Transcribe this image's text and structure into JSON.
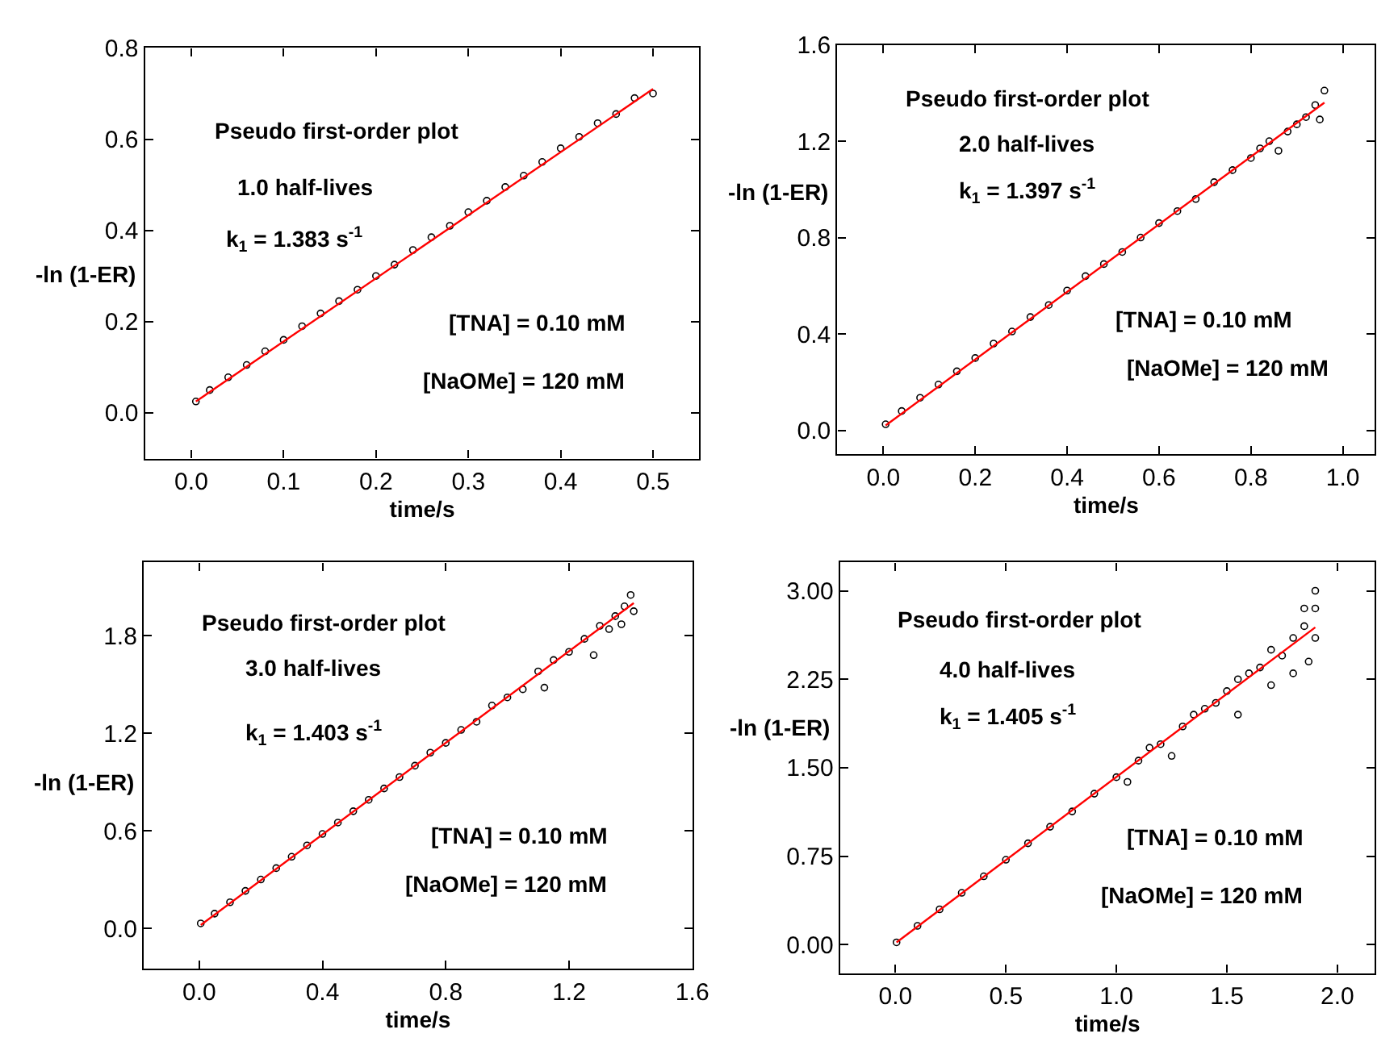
{
  "chart_data": [
    {
      "type": "scatter",
      "xlabel": "time/s",
      "ylabel": "-ln (1-ER)",
      "marker": "circle",
      "xlim": [
        -0.05,
        0.55
      ],
      "xticks": [
        {
          "value": 0,
          "label": "0.0"
        },
        0.1,
        0.2,
        0.3,
        0.4,
        0.5
      ],
      "ylim": [
        -0.1,
        0.8
      ],
      "yticks": [
        {
          "value": 0,
          "label": "0.0"
        },
        0.2,
        0.4,
        0.6,
        0.8
      ],
      "annotations": [
        "Pseudo first-order plot",
        "1.0 half-lives",
        "k$_{1}$ = 1.383 s$^{-1}$",
        "[TNA] = 0.10 mM",
        "[NaOMe] = 120 mM"
      ],
      "series": [
        {
          "color": "#000000",
          "x": [
            0.005,
            0.02,
            0.04,
            0.06,
            0.08,
            0.1,
            0.12,
            0.14,
            0.16,
            0.18,
            0.2,
            0.22,
            0.24,
            0.26,
            0.28,
            0.3,
            0.32,
            0.34,
            0.36,
            0.38,
            0.4,
            0.42,
            0.44,
            0.46,
            0.48,
            0.5
          ],
          "values": [
            0.025,
            0.05,
            0.078,
            0.105,
            0.135,
            0.16,
            0.19,
            0.218,
            0.245,
            0.27,
            0.3,
            0.325,
            0.357,
            0.385,
            0.41,
            0.44,
            0.465,
            0.495,
            0.52,
            0.55,
            0.58,
            0.605,
            0.635,
            0.655,
            0.69,
            0.7
          ]
        },
        {
          "type": "line",
          "marker": "none",
          "color": "#ff0000",
          "x": [
            0.005,
            0.5
          ],
          "values": [
            0.025,
            0.71
          ]
        }
      ]
    },
    {
      "type": "scatter",
      "xlabel": "time/s",
      "ylabel": "-ln (1-ER)",
      "marker": "circle",
      "xlim": [
        -0.1,
        1.07
      ],
      "xticks": [
        {
          "value": 0,
          "label": "0.0"
        },
        0.2,
        0.4,
        0.6,
        0.8,
        {
          "value": 1,
          "label": "1.0"
        }
      ],
      "ylim": [
        -0.1,
        1.6
      ],
      "yticks": [
        {
          "value": 0,
          "label": "0.0"
        },
        0.4,
        0.8,
        1.2,
        1.6
      ],
      "annotations": [
        "Pseudo first-order plot",
        "2.0 half-lives",
        "k$_{1}$ = 1.397 s$^{-1}$",
        "[TNA] = 0.10 mM",
        "[NaOMe] = 120 mM"
      ],
      "series": [
        {
          "color": "#000000",
          "x": [
            0.005,
            0.04,
            0.08,
            0.12,
            0.16,
            0.2,
            0.24,
            0.28,
            0.32,
            0.36,
            0.4,
            0.44,
            0.48,
            0.52,
            0.56,
            0.6,
            0.64,
            0.68,
            0.72,
            0.76,
            0.8,
            0.82,
            0.84,
            0.86,
            0.88,
            0.9,
            0.92,
            0.94,
            0.96,
            0.95
          ],
          "values": [
            0.025,
            0.08,
            0.135,
            0.19,
            0.245,
            0.3,
            0.36,
            0.41,
            0.47,
            0.52,
            0.58,
            0.64,
            0.69,
            0.74,
            0.8,
            0.86,
            0.91,
            0.96,
            1.03,
            1.08,
            1.13,
            1.17,
            1.2,
            1.16,
            1.24,
            1.27,
            1.3,
            1.35,
            1.41,
            1.29
          ]
        },
        {
          "type": "line",
          "marker": "none",
          "color": "#ff0000",
          "x": [
            0.005,
            0.96
          ],
          "values": [
            0.02,
            1.36
          ]
        }
      ]
    },
    {
      "type": "scatter",
      "xlabel": "time/s",
      "ylabel": "-ln (1-ER)",
      "marker": "circle",
      "xlim": [
        -0.18,
        1.6
      ],
      "xticks": [
        {
          "value": 0,
          "label": "0.0"
        },
        0.4,
        0.8,
        1.2,
        1.6
      ],
      "ylim": [
        -0.25,
        2.25
      ],
      "yticks": [
        {
          "value": 0,
          "label": "0.0"
        },
        0.6,
        1.2,
        1.8
      ],
      "annotations": [
        "Pseudo first-order plot",
        "3.0 half-lives",
        "k$_{1}$ = 1.403 s$^{-1}$",
        "[TNA] = 0.10 mM",
        "[NaOMe] = 120 mM"
      ],
      "series": [
        {
          "color": "#000000",
          "x": [
            0.005,
            0.05,
            0.1,
            0.15,
            0.2,
            0.25,
            0.3,
            0.35,
            0.4,
            0.45,
            0.5,
            0.55,
            0.6,
            0.65,
            0.7,
            0.75,
            0.8,
            0.85,
            0.9,
            0.95,
            1.0,
            1.05,
            1.1,
            1.12,
            1.15,
            1.2,
            1.25,
            1.28,
            1.3,
            1.33,
            1.35,
            1.38,
            1.4,
            1.41,
            1.37
          ],
          "values": [
            0.03,
            0.09,
            0.16,
            0.23,
            0.3,
            0.37,
            0.44,
            0.51,
            0.58,
            0.65,
            0.72,
            0.79,
            0.86,
            0.93,
            1.0,
            1.08,
            1.14,
            1.22,
            1.27,
            1.37,
            1.42,
            1.47,
            1.58,
            1.48,
            1.65,
            1.7,
            1.78,
            1.68,
            1.86,
            1.84,
            1.92,
            1.98,
            2.05,
            1.95,
            1.87
          ]
        },
        {
          "type": "line",
          "marker": "none",
          "color": "#ff0000",
          "x": [
            0.005,
            1.41
          ],
          "values": [
            0.02,
            2.0
          ]
        }
      ]
    },
    {
      "type": "scatter",
      "xlabel": "time/s",
      "ylabel": "-ln (1-ER)",
      "marker": "circle",
      "xlim": [
        -0.25,
        2.17
      ],
      "xticks": [
        {
          "value": 0,
          "label": "0.0"
        },
        0.5,
        {
          "value": 1,
          "label": "1.0"
        },
        1.5,
        {
          "value": 2,
          "label": "2.0"
        }
      ],
      "ylim": [
        -0.24,
        3.24
      ],
      "yticks": [
        {
          "value": 0,
          "label": "0.00"
        },
        0.75,
        {
          "value": 1.5,
          "label": "1.50"
        },
        2.25,
        {
          "value": 3,
          "label": "3.00"
        }
      ],
      "annotations": [
        "Pseudo first-order plot",
        "4.0 half-lives",
        "k$_{1}$ = 1.405 s$^{-1}$",
        "[TNA] = 0.10 mM",
        "[NaOMe] = 120 mM"
      ],
      "series": [
        {
          "color": "#000000",
          "x": [
            0.005,
            0.1,
            0.2,
            0.3,
            0.4,
            0.5,
            0.6,
            0.7,
            0.8,
            0.9,
            1.0,
            1.05,
            1.1,
            1.15,
            1.2,
            1.25,
            1.3,
            1.35,
            1.4,
            1.45,
            1.5,
            1.55,
            1.55,
            1.6,
            1.65,
            1.7,
            1.7,
            1.75,
            1.8,
            1.8,
            1.85,
            1.87,
            1.9,
            1.9,
            1.9,
            1.85
          ],
          "values": [
            0.02,
            0.16,
            0.3,
            0.44,
            0.58,
            0.72,
            0.86,
            1.0,
            1.13,
            1.28,
            1.42,
            1.38,
            1.56,
            1.67,
            1.7,
            1.6,
            1.85,
            1.95,
            2.0,
            2.05,
            2.15,
            1.95,
            2.25,
            2.3,
            2.35,
            2.5,
            2.2,
            2.45,
            2.6,
            2.3,
            2.7,
            2.4,
            2.6,
            3.0,
            2.85,
            2.85
          ]
        },
        {
          "type": "line",
          "marker": "none",
          "color": "#ff0000",
          "x": [
            0.005,
            1.9
          ],
          "values": [
            0.02,
            2.69
          ]
        }
      ]
    }
  ]
}
